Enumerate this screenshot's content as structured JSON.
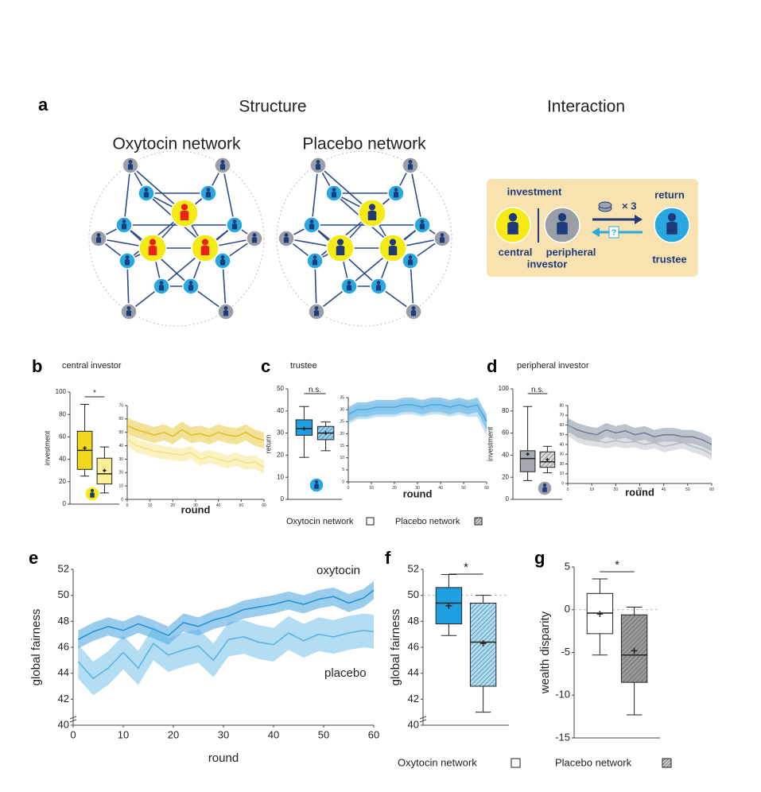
{
  "figure": {
    "panel_labels": [
      "a",
      "b",
      "c",
      "d",
      "e",
      "f",
      "g"
    ],
    "structure_title": "Structure",
    "interaction_title": "Interaction",
    "oxytocin_network_title": "Oxytocin network",
    "placebo_network_title": "Placebo network",
    "interaction": {
      "investment": "investment",
      "times": "× 3",
      "question": "?",
      "return": "return",
      "central": "central",
      "peripheral": "peripheral",
      "investor": "investor",
      "trustee": "trustee"
    },
    "legend_c": [
      "Oxytocin network",
      "Placebo network"
    ],
    "legend_f": "Oxytocin network",
    "legend_g": "Placebo network"
  },
  "chart_data": [
    {
      "type": "box",
      "title": "central investor",
      "ylabel": "investment",
      "ylim": [
        0,
        100
      ],
      "yticks": [
        0,
        20,
        40,
        60,
        80,
        100
      ],
      "significance": "*",
      "boxes": [
        {
          "min": 25,
          "q1": 31,
          "median": 48,
          "q3": 65,
          "max": 89,
          "mean": 50,
          "color": "#f2d81c",
          "hatch": false
        },
        {
          "min": 10,
          "q1": 18,
          "median": 27,
          "q3": 41,
          "max": 51,
          "mean": 30,
          "color": "#fbef9a",
          "hatch": false
        }
      ]
    },
    {
      "type": "line",
      "xlabel": "round",
      "xlim": [
        0,
        60
      ],
      "xticks": [
        0,
        10,
        20,
        30,
        40,
        50,
        60
      ],
      "ylim": [
        0,
        70
      ],
      "yticks": [
        0,
        10,
        20,
        30,
        40,
        50,
        60,
        70
      ],
      "x": [
        0,
        4,
        8,
        12,
        16,
        20,
        24,
        28,
        32,
        36,
        40,
        44,
        48,
        52,
        56,
        60
      ],
      "series": [
        {
          "color": "#e3bd18",
          "values": [
            55,
            52,
            50,
            48,
            50,
            47,
            52,
            48,
            49,
            47,
            50,
            48,
            47,
            50,
            46,
            44
          ],
          "errors": [
            6,
            6,
            6,
            6,
            6,
            6,
            6,
            6,
            6,
            6,
            6,
            6,
            6,
            6,
            6,
            6
          ]
        },
        {
          "color": "#f4e27a",
          "values": [
            45,
            40,
            38,
            36,
            35,
            34,
            33,
            35,
            30,
            32,
            30,
            28,
            30,
            27,
            28,
            24
          ],
          "errors": [
            5,
            5,
            5,
            5,
            5,
            5,
            5,
            5,
            5,
            5,
            5,
            5,
            5,
            5,
            5,
            5
          ]
        }
      ]
    },
    {
      "type": "box",
      "title": "trustee",
      "ylabel": "return",
      "ylim": [
        0,
        50
      ],
      "yticks": [
        0,
        10,
        20,
        30,
        40,
        50
      ],
      "significance": "n.s.",
      "boxes": [
        {
          "min": 19,
          "q1": 29,
          "median": 32,
          "q3": 36,
          "max": 42,
          "mean": 32,
          "color": "#1f9ee0",
          "hatch": false
        },
        {
          "min": 22,
          "q1": 27,
          "median": 30,
          "q3": 33,
          "max": 35,
          "mean": 30,
          "color": "#8fd0f2",
          "hatch": true
        }
      ]
    },
    {
      "type": "line",
      "xlabel": "round",
      "xlim": [
        0,
        60
      ],
      "xticks": [
        0,
        10,
        20,
        30,
        40,
        50,
        60
      ],
      "ylim": [
        0,
        35
      ],
      "yticks": [
        0,
        5,
        10,
        15,
        20,
        25,
        30,
        35
      ],
      "x": [
        0,
        4,
        8,
        12,
        16,
        20,
        24,
        28,
        32,
        36,
        40,
        44,
        48,
        52,
        56,
        60
      ],
      "series": [
        {
          "color": "#1f8fd6",
          "values": [
            28,
            30,
            30,
            31,
            31,
            31,
            32,
            32,
            31,
            32,
            32,
            31,
            32,
            31,
            32,
            25
          ],
          "errors": [
            3,
            3,
            3,
            3,
            3,
            3,
            3,
            3,
            3,
            3,
            3,
            3,
            3,
            3,
            3,
            3
          ]
        },
        {
          "color": "#7cc4ec",
          "values": [
            27,
            29,
            29,
            30,
            30,
            30,
            31,
            31,
            30,
            31,
            31,
            30,
            31,
            30,
            30,
            22
          ],
          "errors": [
            3,
            3,
            3,
            3,
            3,
            3,
            3,
            3,
            3,
            3,
            3,
            3,
            3,
            3,
            3,
            3
          ]
        }
      ]
    },
    {
      "type": "box",
      "title": "peripheral investor",
      "ylabel": "investment",
      "ylim": [
        0,
        100
      ],
      "yticks": [
        0,
        20,
        40,
        60,
        80,
        100
      ],
      "significance": "n.s.",
      "boxes": [
        {
          "min": 17,
          "q1": 25,
          "median": 37,
          "q3": 44,
          "max": 84,
          "mean": 41,
          "color": "#a5a9b0",
          "hatch": false
        },
        {
          "min": 24,
          "q1": 29,
          "median": 34,
          "q3": 43,
          "max": 48,
          "mean": 36,
          "color": "#d6d8dc",
          "hatch": true
        }
      ]
    },
    {
      "type": "line",
      "xlabel": "round",
      "xlim": [
        0,
        60
      ],
      "xticks": [
        0,
        10,
        20,
        30,
        40,
        50,
        60
      ],
      "ylim": [
        0,
        80
      ],
      "yticks": [
        0,
        10,
        20,
        30,
        40,
        50,
        60,
        70,
        80
      ],
      "x": [
        0,
        4,
        8,
        12,
        16,
        20,
        24,
        28,
        32,
        36,
        40,
        44,
        48,
        52,
        56,
        60
      ],
      "series": [
        {
          "color": "#6b7a90",
          "values": [
            60,
            55,
            52,
            50,
            55,
            52,
            54,
            50,
            52,
            48,
            50,
            50,
            48,
            48,
            45,
            40
          ],
          "errors": [
            7,
            7,
            7,
            7,
            7,
            7,
            7,
            7,
            7,
            7,
            7,
            7,
            7,
            7,
            7,
            7
          ]
        },
        {
          "color": "#b4b9c2",
          "values": [
            55,
            48,
            45,
            44,
            42,
            44,
            42,
            43,
            40,
            42,
            38,
            40,
            42,
            38,
            35,
            30
          ],
          "errors": [
            6,
            6,
            6,
            6,
            6,
            6,
            6,
            6,
            6,
            6,
            6,
            6,
            6,
            6,
            6,
            6
          ]
        }
      ]
    },
    {
      "type": "line",
      "xlabel": "round",
      "ylabel": "global fairness",
      "xlim": [
        0,
        60
      ],
      "xticks": [
        0,
        10,
        20,
        30,
        40,
        50,
        60
      ],
      "ylim": [
        40,
        52
      ],
      "yticks": [
        40,
        42,
        44,
        46,
        48,
        50,
        52
      ],
      "x": [
        1,
        4,
        7,
        10,
        13,
        16,
        19,
        22,
        25,
        28,
        31,
        34,
        37,
        40,
        43,
        46,
        49,
        52,
        55,
        58,
        60
      ],
      "series": [
        {
          "name": "oxytocin",
          "color": "#1c8fd8",
          "values": [
            46.6,
            47.2,
            47.6,
            47.3,
            47.8,
            47.4,
            46.9,
            47.9,
            47.6,
            48.1,
            48.4,
            48.9,
            49.1,
            49.3,
            49.6,
            49.3,
            49.7,
            49.9,
            49.4,
            49.8,
            50.4
          ],
          "errors": [
            0.7,
            0.7,
            0.7,
            0.7,
            0.7,
            0.7,
            0.7,
            0.7,
            0.7,
            0.7,
            0.7,
            0.7,
            0.7,
            0.7,
            0.7,
            0.7,
            0.7,
            0.7,
            0.7,
            0.7,
            0.7
          ]
        },
        {
          "name": "placebo",
          "color": "#55b3e3",
          "values": [
            44.9,
            43.6,
            44.4,
            45.6,
            44.4,
            46.3,
            45.4,
            45.8,
            46.1,
            45.0,
            46.6,
            46.8,
            46.4,
            46.2,
            47.1,
            46.5,
            47.0,
            46.8,
            47.1,
            47.3,
            47.2
          ],
          "errors": [
            1.3,
            1.3,
            1.3,
            1.3,
            1.3,
            1.3,
            1.3,
            1.3,
            1.3,
            1.3,
            1.3,
            1.3,
            1.3,
            1.3,
            1.3,
            1.3,
            1.3,
            1.3,
            1.3,
            1.3,
            1.3
          ]
        }
      ]
    },
    {
      "type": "box",
      "ylabel": "global fairness",
      "ylim": [
        40,
        52
      ],
      "yticks": [
        40,
        42,
        44,
        46,
        48,
        50,
        52
      ],
      "significance": "*",
      "reference": 50,
      "boxes": [
        {
          "min": 46.9,
          "q1": 47.8,
          "median": 49.4,
          "q3": 50.6,
          "max": 51.6,
          "mean": 49.2,
          "color": "#1f9ee0",
          "hatch": false
        },
        {
          "min": 41,
          "q1": 43,
          "median": 46.4,
          "q3": 49.4,
          "max": 50,
          "mean": 46.3,
          "color": "#a9dcf5",
          "hatch": true
        }
      ]
    },
    {
      "type": "box",
      "ylabel": "wealth disparity",
      "ylim": [
        -15,
        5
      ],
      "yticks": [
        -15,
        -10,
        -5,
        0,
        5
      ],
      "significance": "*",
      "reference": 0,
      "boxes": [
        {
          "min": -5.3,
          "q1": -2.8,
          "median": -0.4,
          "q3": 1.9,
          "max": 3.6,
          "mean": -0.5,
          "color": "#ffffff",
          "hatch": false
        },
        {
          "min": -12.3,
          "q1": -8.5,
          "median": -5.3,
          "q3": -0.6,
          "max": 0.3,
          "mean": -4.8,
          "color": "#9a9a9a",
          "hatch": true
        }
      ]
    }
  ]
}
